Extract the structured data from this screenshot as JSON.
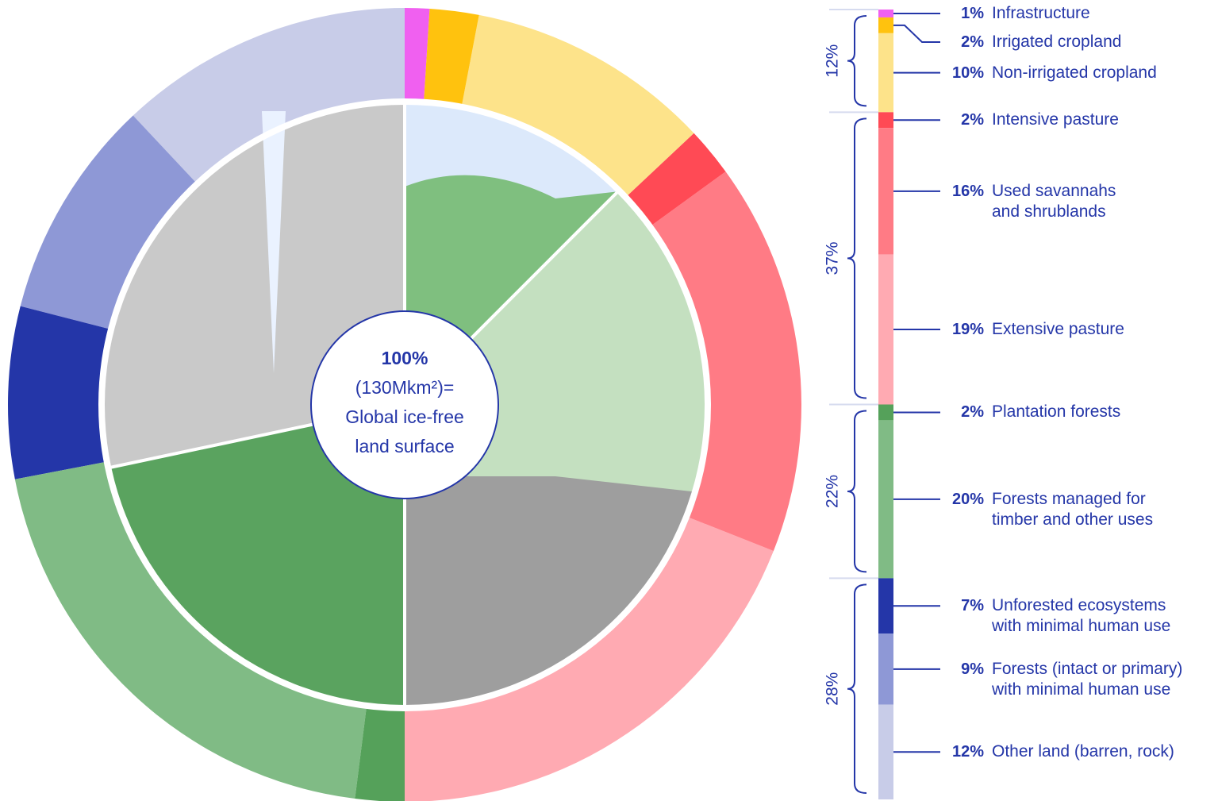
{
  "chart_data": {
    "type": "donut",
    "center_text": [
      "100%",
      "(130Mkm²)=",
      "Global ice-free",
      "land surface"
    ],
    "groups": [
      {
        "value": 12,
        "value_label": "12%",
        "categories": [
          "Infrastructure",
          "Irrigated cropland",
          "Non-irrigated cropland"
        ],
        "values": [
          1,
          2,
          10
        ],
        "value_labels": [
          "1%",
          "2%",
          "10%"
        ],
        "colors": [
          "#f060f0",
          "#ffc20e",
          "#fde38a"
        ]
      },
      {
        "value": 37,
        "value_label": "37%",
        "categories": [
          "Intensive pasture",
          "Used savannahs\nand shrublands",
          "Extensive pasture"
        ],
        "values": [
          2,
          16,
          19
        ],
        "value_labels": [
          "2%",
          "16%",
          "19%"
        ],
        "colors": [
          "#ff4a55",
          "#ff7b85",
          "#ffaab2"
        ]
      },
      {
        "value": 22,
        "value_label": "22%",
        "categories": [
          "Plantation forests",
          "Forests managed for\ntimber and other uses"
        ],
        "values": [
          2,
          20
        ],
        "value_labels": [
          "2%",
          "20%"
        ],
        "colors": [
          "#55a15a",
          "#80bb85"
        ]
      },
      {
        "value": 28,
        "value_label": "28%",
        "categories": [
          "Unforested ecosystems\nwith minimal human use",
          "Forests (intact or primary)\nwith minimal human use",
          "Other land (barren, rock)"
        ],
        "values": [
          7,
          9,
          12
        ],
        "value_labels": [
          "7%",
          "9%",
          "12%"
        ],
        "colors": [
          "#2436a8",
          "#8e98d6",
          "#c8cce8"
        ]
      }
    ]
  }
}
